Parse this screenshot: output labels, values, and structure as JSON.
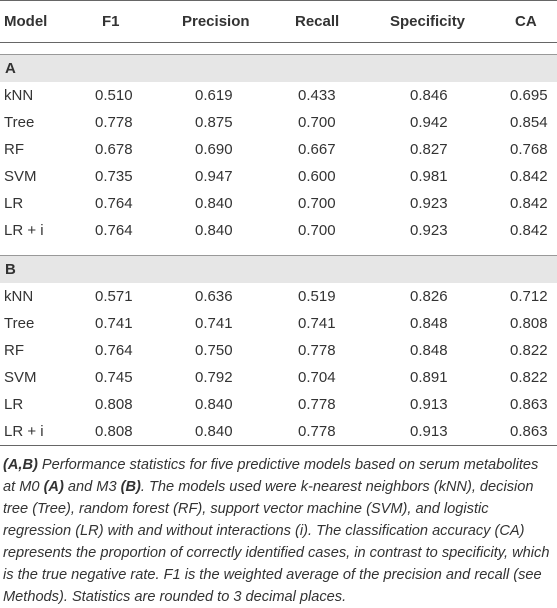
{
  "table": {
    "columns": [
      "Model",
      "F1",
      "Precision",
      "Recall",
      "Specificity",
      "CA"
    ],
    "sections": [
      {
        "label": "A",
        "rows": [
          [
            "kNN",
            "0.510",
            "0.619",
            "0.433",
            "0.846",
            "0.695"
          ],
          [
            "Tree",
            "0.778",
            "0.875",
            "0.700",
            "0.942",
            "0.854"
          ],
          [
            "RF",
            "0.678",
            "0.690",
            "0.667",
            "0.827",
            "0.768"
          ],
          [
            "SVM",
            "0.735",
            "0.947",
            "0.600",
            "0.981",
            "0.842"
          ],
          [
            "LR",
            "0.764",
            "0.840",
            "0.700",
            "0.923",
            "0.842"
          ],
          [
            "LR + i",
            "0.764",
            "0.840",
            "0.700",
            "0.923",
            "0.842"
          ]
        ]
      },
      {
        "label": "B",
        "rows": [
          [
            "kNN",
            "0.571",
            "0.636",
            "0.519",
            "0.826",
            "0.712"
          ],
          [
            "Tree",
            "0.741",
            "0.741",
            "0.741",
            "0.848",
            "0.808"
          ],
          [
            "RF",
            "0.764",
            "0.750",
            "0.778",
            "0.848",
            "0.822"
          ],
          [
            "SVM",
            "0.745",
            "0.792",
            "0.704",
            "0.891",
            "0.822"
          ],
          [
            "LR",
            "0.808",
            "0.840",
            "0.778",
            "0.913",
            "0.863"
          ],
          [
            "LR + i",
            "0.808",
            "0.840",
            "0.778",
            "0.913",
            "0.863"
          ]
        ]
      }
    ]
  },
  "caption": {
    "segments": [
      "(A,B)",
      " Performance statistics for five predictive models based on serum metabolites at M0 ",
      "(A)",
      " and M3 ",
      "(B)",
      ". The models used were k-nearest neighbors (kNN), decision tree (Tree), random forest (RF), support vector machine (SVM), and logistic regression (LR) with and without interactions (i). The classification accuracy (CA) represents the proportion of correctly identified cases, in contrast to specificity, which is the true negative rate. F1 is the weighted average of the precision and recall (see Methods). Statistics are rounded to 3 decimal places."
    ]
  }
}
